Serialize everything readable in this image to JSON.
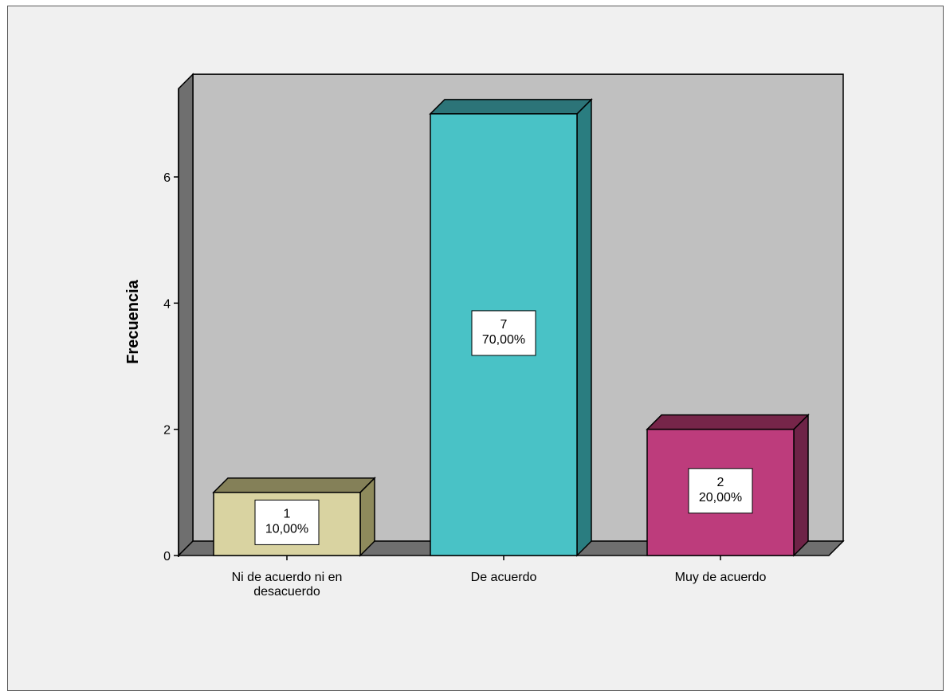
{
  "chart_data": {
    "type": "bar",
    "style": "3d",
    "categories": [
      "Ni de acuerdo ni en desacuerdo",
      "De acuerdo",
      "Muy de acuerdo"
    ],
    "category_label_lines": [
      [
        "Ni de acuerdo ni en",
        "desacuerdo"
      ],
      [
        "De acuerdo"
      ],
      [
        "Muy de acuerdo"
      ]
    ],
    "values": [
      1,
      7,
      2
    ],
    "percent_labels": [
      "10,00%",
      "70,00%",
      "20,00%"
    ],
    "ylabel": "Frecuencia",
    "xlabel": "",
    "title": "",
    "ylim": [
      0,
      7.4
    ],
    "yticks": [
      0,
      2,
      4,
      6
    ],
    "grid": false,
    "colors": {
      "bars": [
        {
          "front": "#d9d3a1",
          "side": "#8e8a5c",
          "top": "#848058"
        },
        {
          "front": "#49c2c6",
          "side": "#2a7d80",
          "top": "#2c7478"
        },
        {
          "front": "#bd3c7c",
          "side": "#6e2347",
          "top": "#762549"
        }
      ],
      "plot_back": "#c0c0c0",
      "plot_wall": "#6f6f6f",
      "background": "#f0f0f0"
    }
  }
}
